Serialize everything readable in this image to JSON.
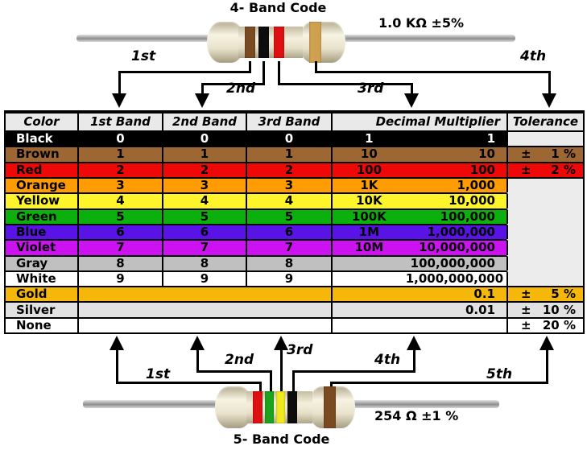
{
  "top_section": {
    "title": "4- Band Code",
    "value_label": "1.0 KΩ  ±5%",
    "arrow_labels": [
      "1st",
      "2nd",
      "3rd",
      "4th"
    ],
    "resistor": {
      "band_names": [
        "brown",
        "black",
        "red",
        "gold"
      ],
      "band_colors": [
        "#7a4a21",
        "#0d0d0d",
        "#dd1111",
        "#cfa050"
      ]
    }
  },
  "table": {
    "headers": [
      "Color",
      "1st Band",
      "2nd Band",
      "3rd Band",
      "Decimal Multiplier",
      "Tolerance"
    ],
    "header_bg": "#e9e9e9",
    "empty_tolerance_bg": "#ececec",
    "rows": [
      {
        "name": "Black",
        "bg": "#000000",
        "fg": "#ffffff",
        "band1": "0",
        "band2": "0",
        "band3": "0",
        "mult_short": "1",
        "mult_long": "1",
        "tol_sign": "",
        "tol_value": "",
        "tol_bg": "#ececec"
      },
      {
        "name": "Brown",
        "bg": "#9c6733",
        "fg": "#000000",
        "band1": "1",
        "band2": "1",
        "band3": "1",
        "mult_short": "10",
        "mult_long": "10",
        "tol_sign": "±",
        "tol_value": "1 %",
        "tol_bg": "#9c6733"
      },
      {
        "name": "Red",
        "bg": "#ee0808",
        "fg": "#000000",
        "band1": "2",
        "band2": "2",
        "band3": "2",
        "mult_short": "100",
        "mult_long": "100",
        "tol_sign": "±",
        "tol_value": "2 %",
        "tol_bg": "#ee0808"
      },
      {
        "name": "Orange",
        "bg": "#ff9c04",
        "fg": "#000000",
        "band1": "3",
        "band2": "3",
        "band3": "3",
        "mult_short": "1K",
        "mult_long": "1,000",
        "tol_sign": "",
        "tol_value": "",
        "tol_bg": "#ececec"
      },
      {
        "name": "Yellow",
        "bg": "#fdf42c",
        "fg": "#000000",
        "band1": "4",
        "band2": "4",
        "band3": "4",
        "mult_short": "10K",
        "mult_long": "10,000",
        "tol_sign": "",
        "tol_value": "",
        "tol_bg": "#ececec",
        "tol_no_top": true
      },
      {
        "name": "Green",
        "bg": "#0cb00c",
        "fg": "#000000",
        "band1": "5",
        "band2": "5",
        "band3": "5",
        "mult_short": "100K",
        "mult_long": "100,000",
        "tol_sign": "",
        "tol_value": "",
        "tol_bg": "#ececec",
        "tol_no_top": true
      },
      {
        "name": "Blue",
        "bg": "#5a13e6",
        "fg": "#000000",
        "band1": "6",
        "band2": "6",
        "band3": "6",
        "mult_short": "1M",
        "mult_long": "1,000,000",
        "tol_sign": "",
        "tol_value": "",
        "tol_bg": "#ececec",
        "tol_no_top": true
      },
      {
        "name": "Violet",
        "bg": "#cc12f0",
        "fg": "#000000",
        "band1": "7",
        "band2": "7",
        "band3": "7",
        "mult_short": "10M",
        "mult_long": "10,000,000",
        "tol_sign": "",
        "tol_value": "",
        "tol_bg": "#ececec",
        "tol_no_top": true
      },
      {
        "name": "Gray",
        "bg": "#c0c0c0",
        "fg": "#000000",
        "band1": "8",
        "band2": "8",
        "band3": "8",
        "mult_short": "",
        "mult_long": "100,000,000",
        "tol_sign": "",
        "tol_value": "",
        "tol_bg": "#ececec",
        "tol_no_top": true
      },
      {
        "name": "White",
        "bg": "#ffffff",
        "fg": "#000000",
        "band1": "9",
        "band2": "9",
        "band3": "9",
        "mult_short": "",
        "mult_long": "1,000,000,000",
        "tol_sign": "",
        "tol_value": "",
        "tol_bg": "#ececec",
        "tol_no_top": true
      },
      {
        "name": "Gold",
        "bg": "#f5b80a",
        "fg": "#000000",
        "merged_bands": true,
        "mult_short": "",
        "mult_long": "0.1",
        "tol_sign": "±",
        "tol_value": "5 %",
        "tol_bg": "#f5b80a"
      },
      {
        "name": "Silver",
        "bg": "#e2e2e2",
        "fg": "#000000",
        "merged_bands": true,
        "mult_short": "",
        "mult_long": "0.01",
        "tol_sign": "±",
        "tol_value": "10 %",
        "tol_bg": "#e2e2e2"
      },
      {
        "name": "None",
        "bg": "#ffffff",
        "fg": "#000000",
        "merged_bands": true,
        "mult_short": "",
        "mult_long": "",
        "tol_sign": "±",
        "tol_value": "20 %",
        "tol_bg": "#ffffff"
      }
    ]
  },
  "bottom_section": {
    "title": "5- Band Code",
    "value_label": "254 Ω  ±1 %",
    "arrow_labels": [
      "1st",
      "2nd",
      "3rd",
      "4th",
      "5th"
    ],
    "resistor": {
      "band_names": [
        "red",
        "green",
        "yellow",
        "black",
        "brown"
      ],
      "band_colors": [
        "#dd1111",
        "#1da31d",
        "#f0e820",
        "#0d0d0d",
        "#7a4a21"
      ]
    }
  }
}
